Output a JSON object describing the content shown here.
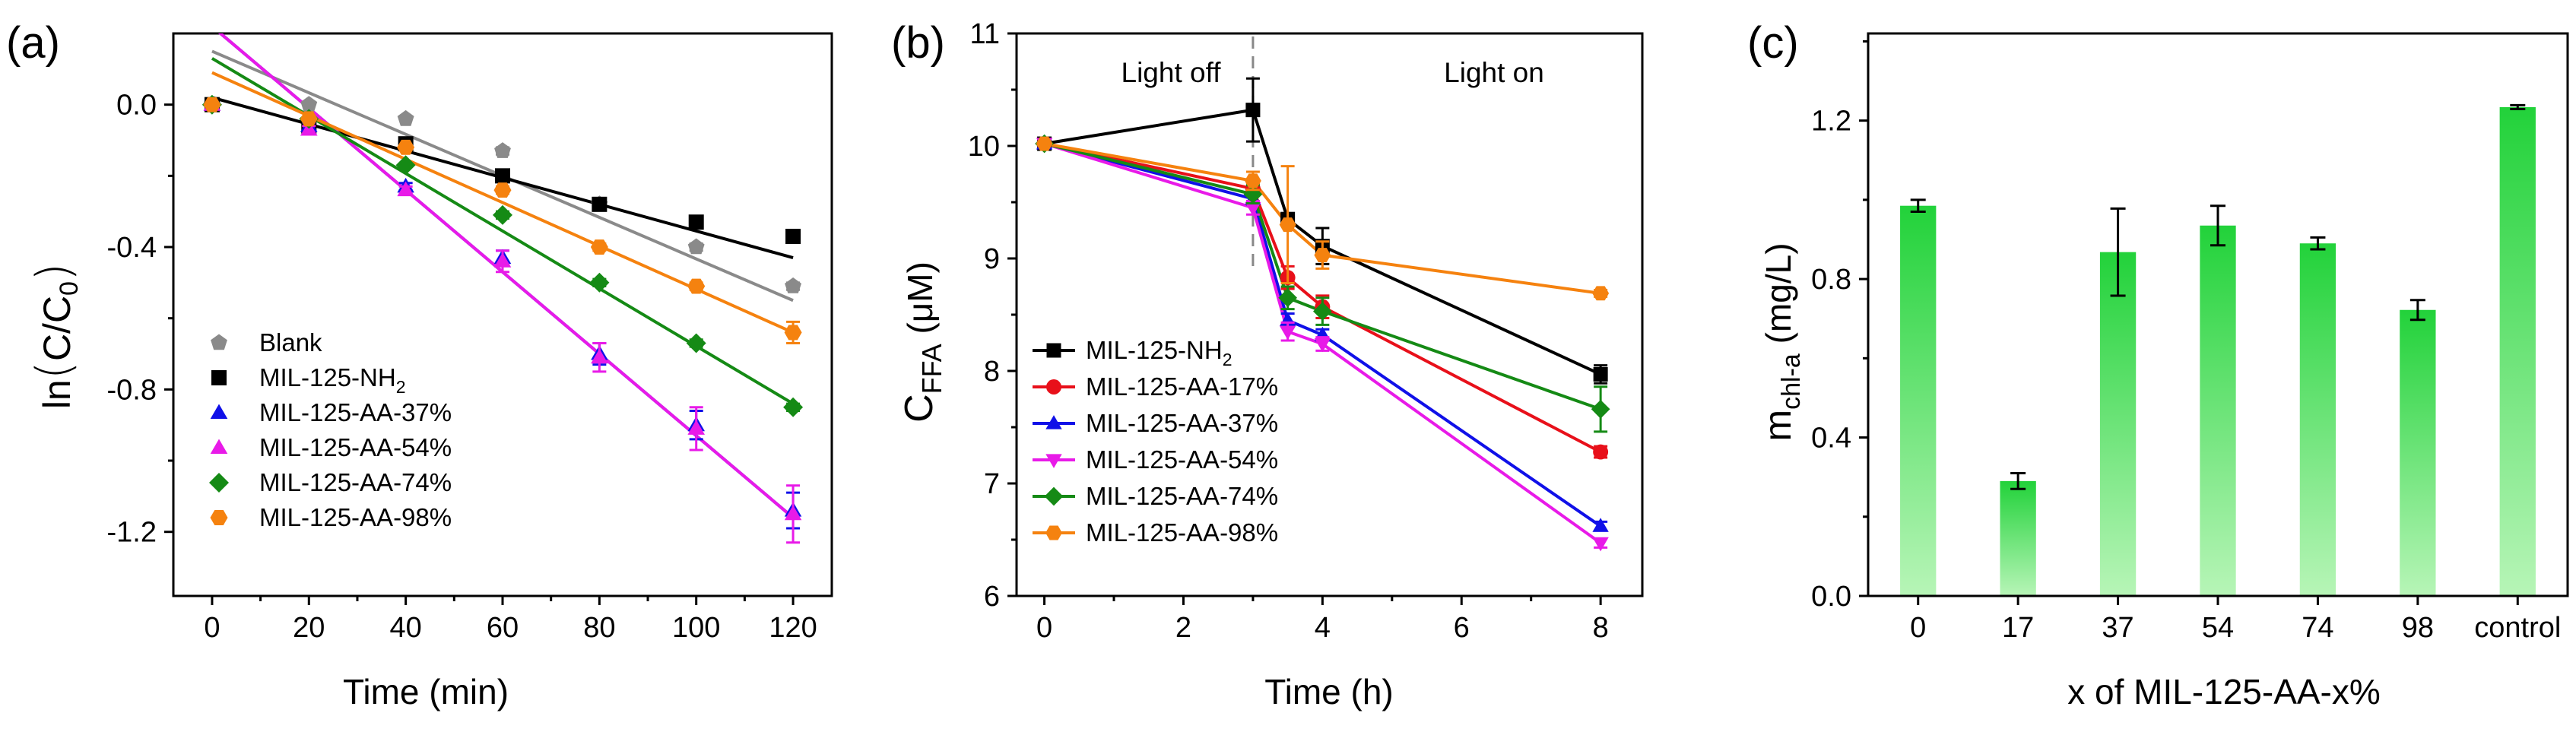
{
  "colors": {
    "blank": "#8a8a8a",
    "nh2": "#000000",
    "aa17": "#e8101a",
    "aa37": "#1010e8",
    "aa54": "#e81ae8",
    "aa74": "#158a15",
    "aa98": "#f5820f",
    "bar_top": "#22d23a",
    "bar_bottom": "#b7f5b7"
  },
  "chart_data": [
    {
      "panel_label": "(a)",
      "type": "scatter",
      "xlabel": "Time (min)",
      "ylabel": {
        "main": "ln",
        "open": "(",
        "text": "C/C",
        "sub": "0",
        "close": ")"
      },
      "xlim": [
        -8,
        128
      ],
      "ylim": [
        -1.38,
        0.2
      ],
      "xticks": [
        0,
        20,
        40,
        60,
        80,
        100,
        120
      ],
      "yticks": [
        0.0,
        -0.4,
        -0.8,
        -1.2
      ],
      "ytick_labels": [
        "0.0",
        "-0.4",
        "-0.8",
        "-1.2"
      ],
      "x": [
        0,
        20,
        40,
        60,
        80,
        100,
        120
      ],
      "series": [
        {
          "name": "Blank",
          "key": "blank",
          "marker": "pentagon",
          "values": [
            0.0,
            0.0,
            -0.04,
            -0.13,
            -0.28,
            -0.4,
            -0.51
          ],
          "err": [
            0,
            0,
            0,
            0.01,
            0.01,
            0.01,
            0.01
          ],
          "fit": [
            0.15,
            -0.55
          ]
        },
        {
          "name": "MIL-125-NH",
          "name_sub": "2",
          "key": "nh2",
          "marker": "square",
          "values": [
            0.0,
            -0.06,
            -0.11,
            -0.2,
            -0.28,
            -0.33,
            -0.37
          ],
          "err": [
            0,
            0,
            0,
            0.01,
            0.01,
            0.01,
            0.01
          ],
          "fit": [
            0.02,
            -0.43
          ]
        },
        {
          "name": "MIL-125-AA-37%",
          "key": "aa37",
          "marker": "triangle-up",
          "values": [
            0.0,
            -0.06,
            -0.23,
            -0.43,
            -0.7,
            -0.9,
            -1.14
          ],
          "err": [
            0,
            0.01,
            0.01,
            0.02,
            0.03,
            0.04,
            0.05
          ],
          "fit": [
            0.22,
            -1.16
          ]
        },
        {
          "name": "MIL-125-AA-54%",
          "key": "aa54",
          "marker": "triangle-up",
          "values": [
            0.0,
            -0.07,
            -0.24,
            -0.44,
            -0.71,
            -0.91,
            -1.15
          ],
          "err": [
            0,
            0.01,
            0.01,
            0.03,
            0.04,
            0.06,
            0.08
          ],
          "fit": [
            0.22,
            -1.16
          ]
        },
        {
          "name": "MIL-125-AA-74%",
          "key": "aa74",
          "marker": "diamond",
          "values": [
            0.0,
            -0.04,
            -0.17,
            -0.31,
            -0.5,
            -0.67,
            -0.85
          ],
          "err": [
            0,
            0,
            0,
            0.01,
            0.01,
            0.01,
            0.01
          ],
          "fit": [
            0.13,
            -0.84
          ]
        },
        {
          "name": "MIL-125-AA-98%",
          "key": "aa98",
          "marker": "hexagon",
          "values": [
            0.0,
            -0.04,
            -0.12,
            -0.24,
            -0.4,
            -0.51,
            -0.64
          ],
          "err": [
            0,
            0,
            0,
            0.01,
            0.01,
            0.01,
            0.03
          ],
          "fit": [
            0.09,
            -0.64
          ]
        }
      ],
      "legend_position": "bottom-left"
    },
    {
      "panel_label": "(b)",
      "type": "line",
      "xlabel": "Time (h)",
      "ylabel": {
        "main": "C",
        "sub": "FFA",
        "rest": " (μM)"
      },
      "xlim": [
        -0.4,
        8.6
      ],
      "ylim": [
        6,
        11
      ],
      "xticks": [
        0,
        2,
        4,
        6,
        8
      ],
      "yticks": [
        6,
        7,
        8,
        9,
        10,
        11
      ],
      "x": [
        0,
        3,
        3.5,
        4,
        8
      ],
      "annotations": {
        "light_off": "Light off",
        "light_on": "Light on",
        "divider_x": 3
      },
      "series": [
        {
          "name": "MIL-125-NH",
          "name_sub": "2",
          "key": "nh2",
          "marker": "square",
          "values": [
            10.02,
            10.32,
            9.35,
            9.11,
            7.97
          ],
          "err": [
            0,
            0.28,
            0.05,
            0.16,
            0.08
          ]
        },
        {
          "name": "MIL-125-AA-17%",
          "key": "aa17",
          "marker": "circle",
          "values": [
            10.02,
            9.62,
            8.83,
            8.57,
            7.28
          ],
          "err": [
            0,
            0.05,
            0.1,
            0.1,
            0.05
          ]
        },
        {
          "name": "MIL-125-AA-37%",
          "key": "aa37",
          "marker": "triangle-up",
          "values": [
            10.02,
            9.53,
            8.45,
            8.32,
            6.62
          ],
          "err": [
            0,
            0.05,
            0.06,
            0.05,
            0.04
          ]
        },
        {
          "name": "MIL-125-AA-54%",
          "key": "aa54",
          "marker": "triangle-down",
          "values": [
            10.02,
            9.45,
            8.35,
            8.24,
            6.47
          ],
          "err": [
            0,
            0.06,
            0.08,
            0.06,
            0.04
          ]
        },
        {
          "name": "MIL-125-AA-74%",
          "key": "aa74",
          "marker": "diamond",
          "values": [
            10.02,
            9.57,
            8.65,
            8.53,
            7.66
          ],
          "err": [
            0,
            0.08,
            0.1,
            0.12,
            0.2
          ]
        },
        {
          "name": "MIL-125-AA-98%",
          "key": "aa98",
          "marker": "hexagon",
          "values": [
            10.02,
            9.69,
            9.3,
            9.03,
            8.69
          ],
          "err": [
            0,
            0.08,
            0.52,
            0.12,
            0.03
          ]
        }
      ],
      "legend_position": "bottom-left"
    },
    {
      "panel_label": "(c)",
      "type": "bar",
      "xlabel": "x of MIL-125-AA-x%",
      "ylabel": {
        "main": "m",
        "sub": "chl-a",
        "rest": " (mg/L)"
      },
      "ylim": [
        0,
        1.42
      ],
      "yticks": [
        0.0,
        0.4,
        0.8,
        1.2
      ],
      "ytick_labels": [
        "0.0",
        "0.4",
        "0.8",
        "1.2"
      ],
      "categories": [
        "0",
        "17",
        "37",
        "54",
        "74",
        "98",
        "control"
      ],
      "values": [
        0.985,
        0.29,
        0.868,
        0.935,
        0.89,
        0.722,
        1.234
      ],
      "err": [
        0.015,
        0.02,
        0.11,
        0.05,
        0.015,
        0.025,
        0.005
      ]
    }
  ]
}
